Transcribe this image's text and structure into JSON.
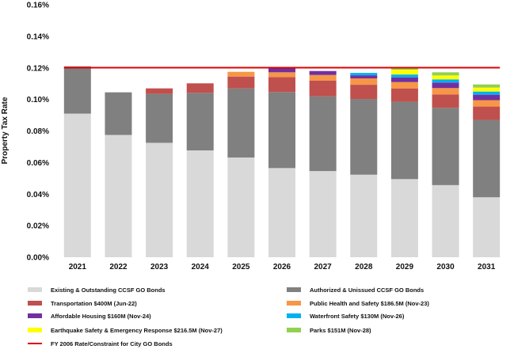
{
  "chart_data": {
    "type": "bar",
    "stacked": true,
    "categories": [
      "2021",
      "2022",
      "2023",
      "2024",
      "2025",
      "2026",
      "2027",
      "2028",
      "2029",
      "2030",
      "2031"
    ],
    "ylabel": "Property Tax Rate",
    "xlabel": "",
    "ylim": [
      0,
      0.16
    ],
    "yticks": [
      0,
      0.02,
      0.04,
      0.06,
      0.08,
      0.1,
      0.12,
      0.14,
      0.16
    ],
    "ytick_labels": [
      "0.00%",
      "0.02%",
      "0.04%",
      "0.06%",
      "0.08%",
      "0.10%",
      "0.12%",
      "0.14%",
      "0.16%"
    ],
    "grid": false,
    "legend_position": "bottom",
    "series": [
      {
        "name": "Existing & Outstanding CCSF GO Bonds",
        "color": "#d9d9d9",
        "values": [
          0.091,
          0.0775,
          0.0725,
          0.0677,
          0.0632,
          0.0565,
          0.0546,
          0.0523,
          0.0495,
          0.0457,
          0.038
        ]
      },
      {
        "name": "Authorized & Unissued CCSF GO Bonds",
        "color": "#808080",
        "values": [
          0.03,
          0.027,
          0.031,
          0.0365,
          0.0438,
          0.0482,
          0.0474,
          0.048,
          0.049,
          0.049,
          0.049
        ]
      },
      {
        "name": "Transportation $400M (Jun-22)",
        "color": "#c0504d",
        "values": [
          0,
          0,
          0.0035,
          0.006,
          0.0075,
          0.0095,
          0.01,
          0.009,
          0.0085,
          0.0085,
          0.0085
        ]
      },
      {
        "name": "Public Health and Safety $186.5M (Nov-23)",
        "color": "#f79646",
        "values": [
          0,
          0,
          0,
          0,
          0.003,
          0.003,
          0.0035,
          0.004,
          0.004,
          0.004,
          0.004
        ]
      },
      {
        "name": "Affordable Housing $160M (Nov-24)",
        "color": "#7030a0",
        "values": [
          0,
          0,
          0,
          0,
          0,
          0.0028,
          0.0025,
          0.002,
          0.003,
          0.0035,
          0.0035
        ]
      },
      {
        "name": "Waterfront Safety $130M (Nov-26)",
        "color": "#00b0f0",
        "values": [
          0,
          0,
          0,
          0,
          0,
          0,
          0,
          0.0015,
          0.0018,
          0.002,
          0.002
        ]
      },
      {
        "name": "Earthquake Safety & Emergency Response $216.5M (Nov-27)",
        "color": "#ffff00",
        "values": [
          0,
          0,
          0,
          0,
          0,
          0,
          0,
          0,
          0.003,
          0.0025,
          0.0025
        ]
      },
      {
        "name": "Parks $151M (Nov-28)",
        "color": "#92d050",
        "values": [
          0,
          0,
          0,
          0,
          0,
          0,
          0,
          0,
          0.001,
          0.002,
          0.002
        ]
      }
    ],
    "reference_line": {
      "name": "FY 2006 Rate/Constraint for City GO Bonds",
      "value": 0.1201,
      "color": "#e00000"
    },
    "legend_left": [
      "Existing & Outstanding CCSF GO Bonds",
      "Transportation $400M (Jun-22)",
      "Affordable Housing $160M (Nov-24)",
      "Earthquake Safety & Emergency Response $216.5M (Nov-27)",
      "FY 2006 Rate/Constraint for City GO Bonds"
    ],
    "legend_right": [
      "Authorized & Unissued CCSF GO Bonds",
      "Public Health and Safety $186.5M (Nov-23)",
      "Waterfront Safety $130M (Nov-26)",
      "Parks $151M (Nov-28)"
    ]
  }
}
